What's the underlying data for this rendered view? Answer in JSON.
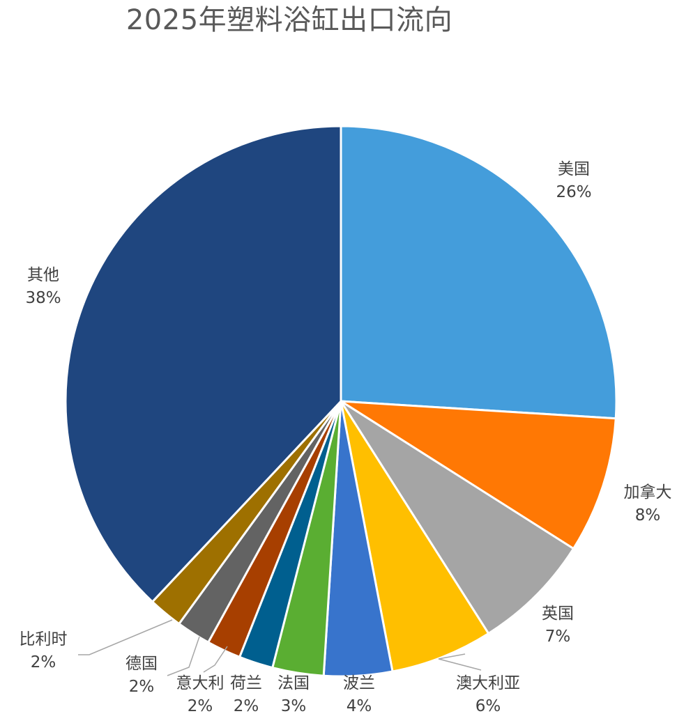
{
  "chart_data": {
    "type": "pie",
    "title": "2025年塑料浴缸出口流向",
    "slices": [
      {
        "name": "美国",
        "value": 26,
        "label": "26%",
        "color": "#449ddb"
      },
      {
        "name": "加拿大",
        "value": 8,
        "label": "8%",
        "color": "#ff7804"
      },
      {
        "name": "英国",
        "value": 7,
        "label": "7%",
        "color": "#a5a5a5"
      },
      {
        "name": "澳大利亚",
        "value": 6,
        "label": "6%",
        "color": "#ffbf00"
      },
      {
        "name": "波兰",
        "value": 4,
        "label": "4%",
        "color": "#3874cc"
      },
      {
        "name": "法国",
        "value": 3,
        "label": "3%",
        "color": "#5aae32"
      },
      {
        "name": "荷兰",
        "value": 2,
        "label": "2%",
        "color": "#005f8f"
      },
      {
        "name": "意大利",
        "value": 2,
        "label": "2%",
        "color": "#a73f00"
      },
      {
        "name": "德国",
        "value": 2,
        "label": "2%",
        "color": "#636363"
      },
      {
        "name": "比利时",
        "value": 2,
        "label": "2%",
        "color": "#9e7000"
      },
      {
        "name": "其他",
        "value": 38,
        "label": "38%",
        "color": "#1f467f"
      }
    ],
    "start_angle": "12 o'clock",
    "direction": "clockwise",
    "legend": "none",
    "data_labels": "category name and percentage"
  }
}
